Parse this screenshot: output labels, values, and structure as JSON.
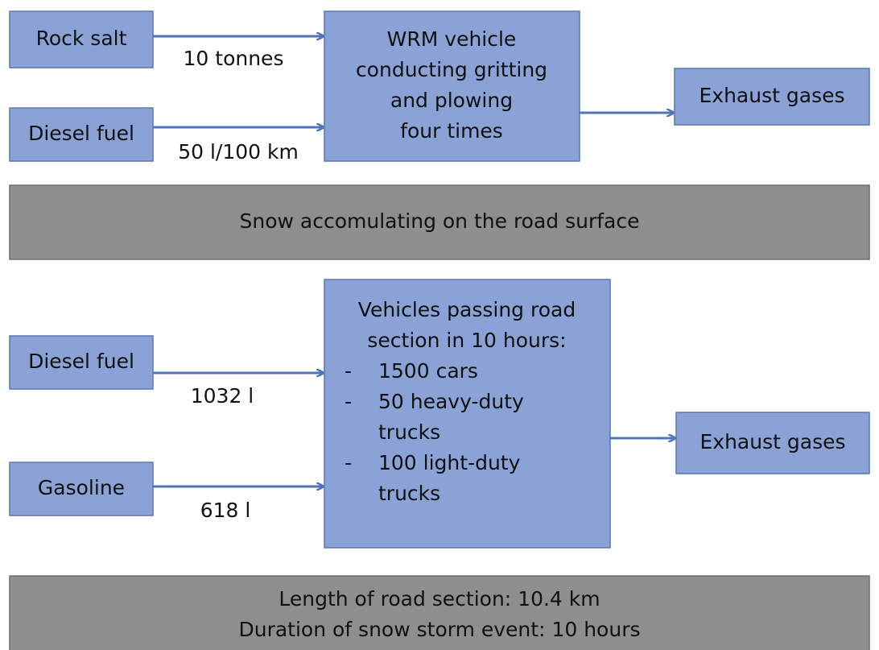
{
  "top": {
    "inputs": [
      {
        "label": "Rock salt",
        "edge_label": "10 tonnes"
      },
      {
        "label": "Diesel fuel",
        "edge_label": "50 l/100 km"
      }
    ],
    "process": [
      "WRM vehicle",
      "conducting gritting",
      "and plowing",
      "four times"
    ],
    "output": "Exhaust gases"
  },
  "condition": "Snow accomulating on the road surface",
  "bottom": {
    "inputs": [
      {
        "label": "Diesel fuel",
        "edge_label": "1032 l"
      },
      {
        "label": "Gasoline",
        "edge_label": "618 l"
      }
    ],
    "process": {
      "heading": [
        "Vehicles passing road",
        "section in 10 hours:"
      ],
      "bullet": "-",
      "items": [
        [
          "1500 cars"
        ],
        [
          "50 heavy-duty",
          "trucks"
        ],
        [
          "100 light-duty",
          "trucks"
        ]
      ]
    },
    "output": "Exhaust gases"
  },
  "footer": [
    "Length of road section: 10.4 km",
    "Duration of snow storm event: 10 hours"
  ]
}
